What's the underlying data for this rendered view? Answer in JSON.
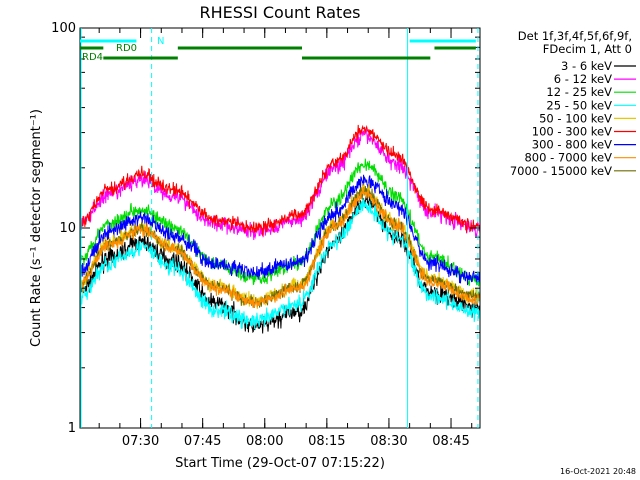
{
  "chart_data": {
    "type": "line",
    "title": "RHESSI Count Rates",
    "xlabel": "Start Time (29-Oct-07 07:15:22)",
    "ylabel": "Count Rate (s⁻¹ detector segment⁻¹)",
    "y_scale": "log",
    "ylim": [
      1,
      100
    ],
    "xlim": [
      "07:15:22",
      "08:52:00"
    ],
    "grid": false,
    "y_ticks": [
      {
        "value": 1,
        "label": "1"
      },
      {
        "value": 10,
        "label": "10"
      },
      {
        "value": 100,
        "label": "100"
      }
    ],
    "x_ticks": [
      {
        "value": "07:30",
        "label": "07:30"
      },
      {
        "value": "07:45",
        "label": "07:45"
      },
      {
        "value": "08:00",
        "label": "08:00"
      },
      {
        "value": "08:15",
        "label": "08:15"
      },
      {
        "value": "08:30",
        "label": "08:30"
      },
      {
        "value": "08:45",
        "label": "08:45"
      }
    ],
    "legend": {
      "placement": "right",
      "header_lines": [
        "Det 1f,3f,4f,5f,6f,9f,",
        "FDecim 1, Att 0"
      ]
    },
    "series": [
      {
        "name": "3 - 6 keV",
        "color": "#000000",
        "points": [
          [
            "07:15:22",
            4.8
          ],
          [
            "07:22",
            7.0
          ],
          [
            "07:30",
            8.5
          ],
          [
            "07:38",
            6.8
          ],
          [
            "07:48",
            4.2
          ],
          [
            "07:58",
            3.2
          ],
          [
            "08:08",
            3.8
          ],
          [
            "08:17",
            8.5
          ],
          [
            "08:24",
            13.8
          ],
          [
            "08:32",
            9.0
          ],
          [
            "08:40",
            4.8
          ],
          [
            "08:51",
            4.0
          ]
        ]
      },
      {
        "name": "6 - 12 keV",
        "color": "#ff00ff",
        "points": [
          [
            "07:15:22",
            10.5
          ],
          [
            "07:22",
            14.5
          ],
          [
            "07:30",
            17.5
          ],
          [
            "07:38",
            14.5
          ],
          [
            "07:48",
            10.5
          ],
          [
            "07:58",
            9.5
          ],
          [
            "08:08",
            11.0
          ],
          [
            "08:17",
            20.0
          ],
          [
            "08:24",
            29.0
          ],
          [
            "08:32",
            21.0
          ],
          [
            "08:40",
            12.0
          ],
          [
            "08:51",
            10.0
          ]
        ]
      },
      {
        "name": "12 - 25 keV",
        "color": "#00dd00",
        "points": [
          [
            "07:15:22",
            7.0
          ],
          [
            "07:22",
            10.5
          ],
          [
            "07:30",
            12.5
          ],
          [
            "07:38",
            10.0
          ],
          [
            "07:48",
            6.6
          ],
          [
            "07:58",
            5.6
          ],
          [
            "08:08",
            6.6
          ],
          [
            "08:17",
            13.5
          ],
          [
            "08:24",
            21.0
          ],
          [
            "08:32",
            14.5
          ],
          [
            "08:40",
            7.2
          ],
          [
            "08:51",
            5.5
          ]
        ]
      },
      {
        "name": "25 - 50 keV",
        "color": "#00ffff",
        "points": [
          [
            "07:15:22",
            4.5
          ],
          [
            "07:22",
            6.6
          ],
          [
            "07:30",
            8.0
          ],
          [
            "07:38",
            6.3
          ],
          [
            "07:48",
            3.9
          ],
          [
            "07:58",
            3.4
          ],
          [
            "08:08",
            4.2
          ],
          [
            "08:17",
            8.5
          ],
          [
            "08:24",
            13.0
          ],
          [
            "08:32",
            9.0
          ],
          [
            "08:40",
            4.6
          ],
          [
            "08:51",
            3.8
          ]
        ]
      },
      {
        "name": "50 - 100 keV",
        "color": "#e8c800",
        "points": [
          [
            "07:15:22",
            5.4
          ],
          [
            "07:22",
            8.5
          ],
          [
            "07:30",
            10.0
          ],
          [
            "07:38",
            8.0
          ],
          [
            "07:48",
            5.2
          ],
          [
            "07:58",
            4.3
          ],
          [
            "08:08",
            5.2
          ],
          [
            "08:17",
            10.5
          ],
          [
            "08:24",
            15.5
          ],
          [
            "08:32",
            10.5
          ],
          [
            "08:40",
            5.6
          ],
          [
            "08:51",
            4.6
          ]
        ]
      },
      {
        "name": "100 - 300 keV",
        "color": "#ff0000",
        "points": [
          [
            "07:15:22",
            10.5
          ],
          [
            "07:22",
            15.5
          ],
          [
            "07:30",
            18.5
          ],
          [
            "07:38",
            15.5
          ],
          [
            "07:48",
            11.0
          ],
          [
            "07:58",
            10.0
          ],
          [
            "08:08",
            11.5
          ],
          [
            "08:17",
            21.5
          ],
          [
            "08:24",
            31.0
          ],
          [
            "08:32",
            23.0
          ],
          [
            "08:40",
            12.5
          ],
          [
            "08:51",
            10.2
          ]
        ]
      },
      {
        "name": "300 - 800 keV",
        "color": "#0000ff",
        "points": [
          [
            "07:15:22",
            6.0
          ],
          [
            "07:22",
            9.5
          ],
          [
            "07:30",
            11.2
          ],
          [
            "07:38",
            9.2
          ],
          [
            "07:48",
            6.6
          ],
          [
            "07:58",
            6.0
          ],
          [
            "08:08",
            6.8
          ],
          [
            "08:17",
            12.0
          ],
          [
            "08:24",
            17.5
          ],
          [
            "08:32",
            13.0
          ],
          [
            "08:40",
            6.6
          ],
          [
            "08:51",
            5.6
          ]
        ]
      },
      {
        "name": "800 - 7000 keV",
        "color": "#ff8c00",
        "points": [
          [
            "07:15:22",
            5.2
          ],
          [
            "07:22",
            8.2
          ],
          [
            "07:30",
            9.8
          ],
          [
            "07:38",
            7.8
          ],
          [
            "07:48",
            5.0
          ],
          [
            "07:58",
            4.2
          ],
          [
            "08:08",
            5.0
          ],
          [
            "08:17",
            10.2
          ],
          [
            "08:24",
            15.0
          ],
          [
            "08:32",
            10.2
          ],
          [
            "08:40",
            5.4
          ],
          [
            "08:51",
            4.4
          ]
        ]
      },
      {
        "name": "7000 - 15000 keV",
        "color": "#6b6b00",
        "points": [
          [
            "07:15:22",
            5.3
          ],
          [
            "07:22",
            8.3
          ],
          [
            "07:30",
            9.9
          ],
          [
            "07:38",
            7.9
          ],
          [
            "07:48",
            5.1
          ],
          [
            "07:58",
            4.25
          ],
          [
            "08:08",
            5.1
          ],
          [
            "08:17",
            10.3
          ],
          [
            "08:24",
            15.2
          ],
          [
            "08:32",
            10.3
          ],
          [
            "08:40",
            5.5
          ],
          [
            "08:51",
            4.5
          ]
        ]
      }
    ],
    "annotations": {
      "flags": [
        {
          "label": "N",
          "color": "#00ffff",
          "intervals": [
            [
              "07:15:22",
              "07:29"
            ],
            [
              "08:35",
              "08:51"
            ]
          ]
        },
        {
          "label": "RD0",
          "color": "#008000",
          "intervals": [
            [
              "07:15:22",
              "07:21"
            ],
            [
              "07:39",
              "08:09"
            ],
            [
              "08:41",
              "08:51"
            ]
          ]
        },
        {
          "label": "RD4",
          "color": "#008000",
          "intervals": [
            [
              "07:21",
              "07:39"
            ],
            [
              "08:09",
              "08:40"
            ]
          ]
        }
      ],
      "vlines_solid": [
        "08:34:30"
      ],
      "vlines_dashed": [
        "07:32:40",
        "08:51:30"
      ]
    },
    "footer_timestamp": "16-Oct-2021 20:48"
  }
}
